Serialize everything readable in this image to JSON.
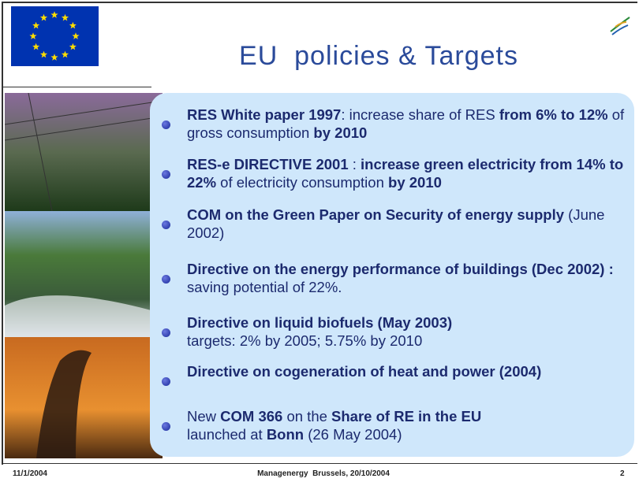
{
  "header": {
    "title": "EU  policies & Targets"
  },
  "bullets": [
    [
      {
        "text": "RES White paper 1997",
        "bold": true
      },
      {
        "text": ":  increase share of RES ",
        "bold": false
      },
      {
        "text": "from 6% to 12%",
        "bold": true
      },
      {
        "text": " of gross consumption ",
        "bold": false
      },
      {
        "text": "by 2010",
        "bold": true
      }
    ],
    [
      {
        "text": "RES-e DIRECTIVE 2001",
        "bold": true
      },
      {
        "text": " : ",
        "bold": false
      },
      {
        "text": "increase green electricity from 14% to 22%",
        "bold": true
      },
      {
        "text": " of electricity consumption ",
        "bold": false
      },
      {
        "text": "by 2010",
        "bold": true
      }
    ],
    [
      {
        "text": "COM on the Green Paper on Security of energy supply",
        "bold": true
      },
      {
        "text": " (June 2002)",
        "bold": false
      }
    ],
    [
      {
        "text": "Directive on  the energy performance of buildings (Dec 2002) :",
        "bold": true
      },
      {
        "text": " saving potential of 22%.",
        "bold": false
      }
    ],
    [
      {
        "text": "Directive on liquid biofuels (May 2003)",
        "bold": true
      },
      {
        "text": "\ntargets: 2% by 2005;  5.75% by 2010",
        "bold": false
      }
    ],
    [
      {
        "text": "Directive on cogeneration of heat and power (2004)",
        "bold": true
      }
    ],
    [
      {
        "text": "New ",
        "bold": false
      },
      {
        "text": "COM 366",
        "bold": true
      },
      {
        "text": " on the ",
        "bold": false
      },
      {
        "text": "Share of RE in the EU",
        "bold": true
      },
      {
        "text": "\nlaunched at ",
        "bold": false
      },
      {
        "text": "Bonn",
        "bold": true
      },
      {
        "text": " (26 May 2004)",
        "bold": false
      }
    ]
  ],
  "footer": {
    "date": "11/1/2004",
    "event": "Managenergy  Brussels, 20/10/2004",
    "page": "2"
  }
}
